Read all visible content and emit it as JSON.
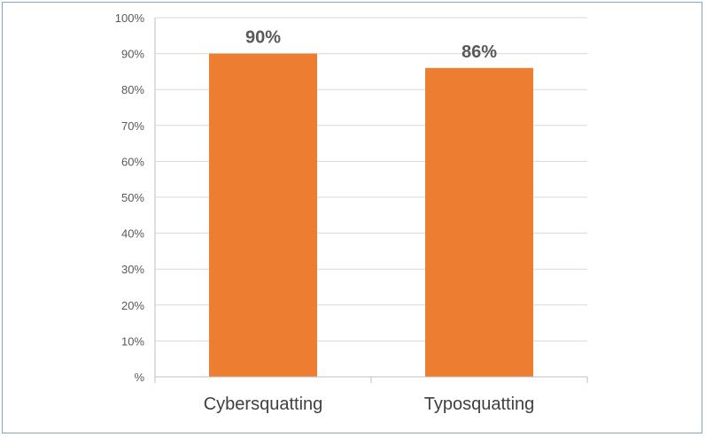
{
  "chart_data": {
    "type": "bar",
    "categories": [
      "Cybersquatting",
      "Typosquatting"
    ],
    "values": [
      90,
      86
    ],
    "data_labels": [
      "90%",
      "86%"
    ],
    "title": "",
    "xlabel": "",
    "ylabel": "",
    "ylim": [
      0,
      100
    ],
    "ytick_labels": [
      "%",
      "10%",
      "20%",
      "30%",
      "40%",
      "50%",
      "60%",
      "70%",
      "80%",
      "90%",
      "100%"
    ],
    "grid": true,
    "legend": "none",
    "bar_color": "#ed7d31"
  }
}
